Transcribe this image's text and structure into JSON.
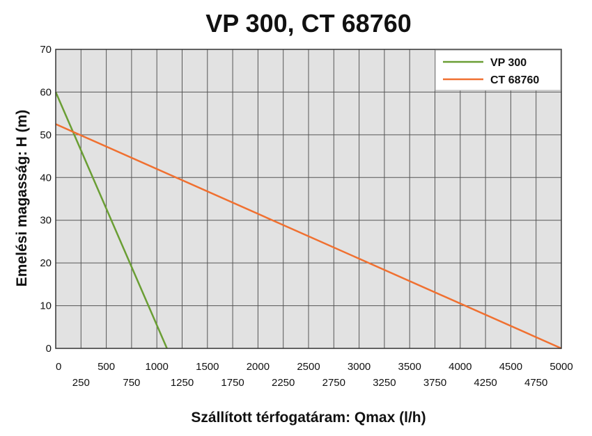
{
  "chart_data": {
    "type": "line",
    "title": "VP 300, CT 68760",
    "xlabel": "Szállított térfogatáram: Qmax (l/h)",
    "ylabel": "Emelési magasság: H (m)",
    "xlim": [
      0,
      5000
    ],
    "ylim": [
      0,
      70
    ],
    "x_ticks": [
      0,
      250,
      500,
      750,
      1000,
      1250,
      1500,
      1750,
      2000,
      2250,
      2500,
      2750,
      3000,
      3250,
      3500,
      3750,
      4000,
      4250,
      4500,
      4750,
      5000
    ],
    "y_ticks": [
      0,
      10,
      20,
      30,
      40,
      50,
      60,
      70
    ],
    "grid": true,
    "legend_position": "top-right",
    "series": [
      {
        "name": "VP 300",
        "color": "#6a9e34",
        "points": [
          [
            0,
            60
          ],
          [
            1100,
            0
          ]
        ]
      },
      {
        "name": "CT 68760",
        "color": "#f07030",
        "points": [
          [
            0,
            52.5
          ],
          [
            5000,
            0
          ]
        ]
      }
    ]
  },
  "colors": {
    "plot_background": "#e2e2e2",
    "grid": "#555555"
  }
}
